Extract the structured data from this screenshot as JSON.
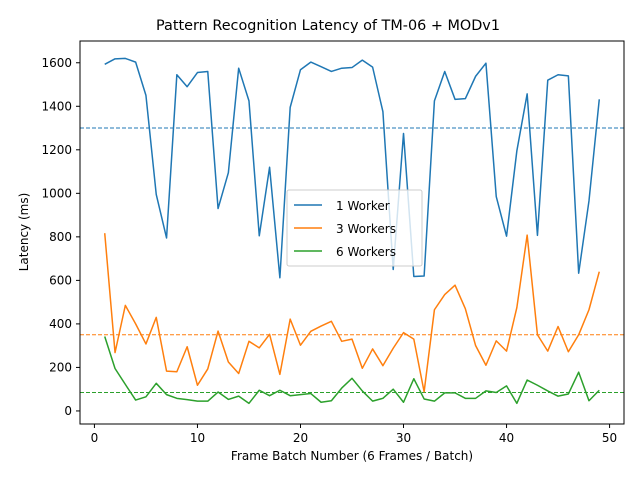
{
  "chart_data": {
    "type": "line",
    "title": "Pattern Recognition Latency of TM-06 + MODv1",
    "xlabel": "Frame Batch Number (6 Frames / Batch)",
    "ylabel": "Latency (ms)",
    "xlim": [
      -1.4,
      51.4
    ],
    "ylim": [
      -60,
      1700
    ],
    "xticks": [
      0,
      10,
      20,
      30,
      40,
      50
    ],
    "yticks": [
      0,
      200,
      400,
      600,
      800,
      1000,
      1200,
      1400,
      1600
    ],
    "grid": false,
    "legend_position": "center-right",
    "x": [
      1,
      2,
      3,
      4,
      5,
      6,
      7,
      8,
      9,
      10,
      11,
      12,
      13,
      14,
      15,
      16,
      17,
      18,
      19,
      20,
      21,
      22,
      23,
      24,
      25,
      26,
      27,
      28,
      29,
      30,
      31,
      32,
      33,
      34,
      35,
      36,
      37,
      38,
      39,
      40,
      41,
      42,
      43,
      44,
      45,
      46,
      47,
      48,
      49
    ],
    "series": [
      {
        "name": "1 Worker",
        "color": "#1f77b4",
        "values": [
          1593,
          1618,
          1620,
          1603,
          1450,
          995,
          795,
          1545,
          1490,
          1555,
          1560,
          930,
          1095,
          1575,
          1425,
          805,
          1120,
          612,
          1395,
          1568,
          1603,
          1582,
          1560,
          1575,
          1578,
          1612,
          1580,
          1375,
          650,
          1275,
          618,
          620,
          1425,
          1560,
          1432,
          1435,
          1538,
          1598,
          985,
          803,
          1195,
          1457,
          807,
          1520,
          1545,
          1540,
          633,
          965,
          1432
        ],
        "reference": 1300
      },
      {
        "name": "3 Workers",
        "color": "#ff7f0e",
        "values": [
          817,
          268,
          485,
          400,
          308,
          430,
          183,
          180,
          295,
          118,
          193,
          367,
          225,
          172,
          320,
          290,
          352,
          168,
          422,
          302,
          366,
          390,
          412,
          320,
          330,
          196,
          285,
          208,
          288,
          360,
          330,
          88,
          465,
          535,
          578,
          470,
          300,
          210,
          322,
          275,
          475,
          808,
          350,
          275,
          388,
          272,
          350,
          465,
          640
        ],
        "reference": 350
      },
      {
        "name": "6 Workers",
        "color": "#2ca02c",
        "values": [
          342,
          195,
          122,
          50,
          65,
          127,
          75,
          58,
          52,
          45,
          45,
          87,
          53,
          68,
          35,
          95,
          70,
          95,
          70,
          75,
          80,
          40,
          47,
          105,
          150,
          92,
          45,
          58,
          100,
          40,
          148,
          55,
          45,
          83,
          83,
          58,
          58,
          92,
          85,
          115,
          35,
          142,
          118,
          92,
          68,
          78,
          178,
          47,
          95
        ],
        "reference": 85
      }
    ]
  }
}
